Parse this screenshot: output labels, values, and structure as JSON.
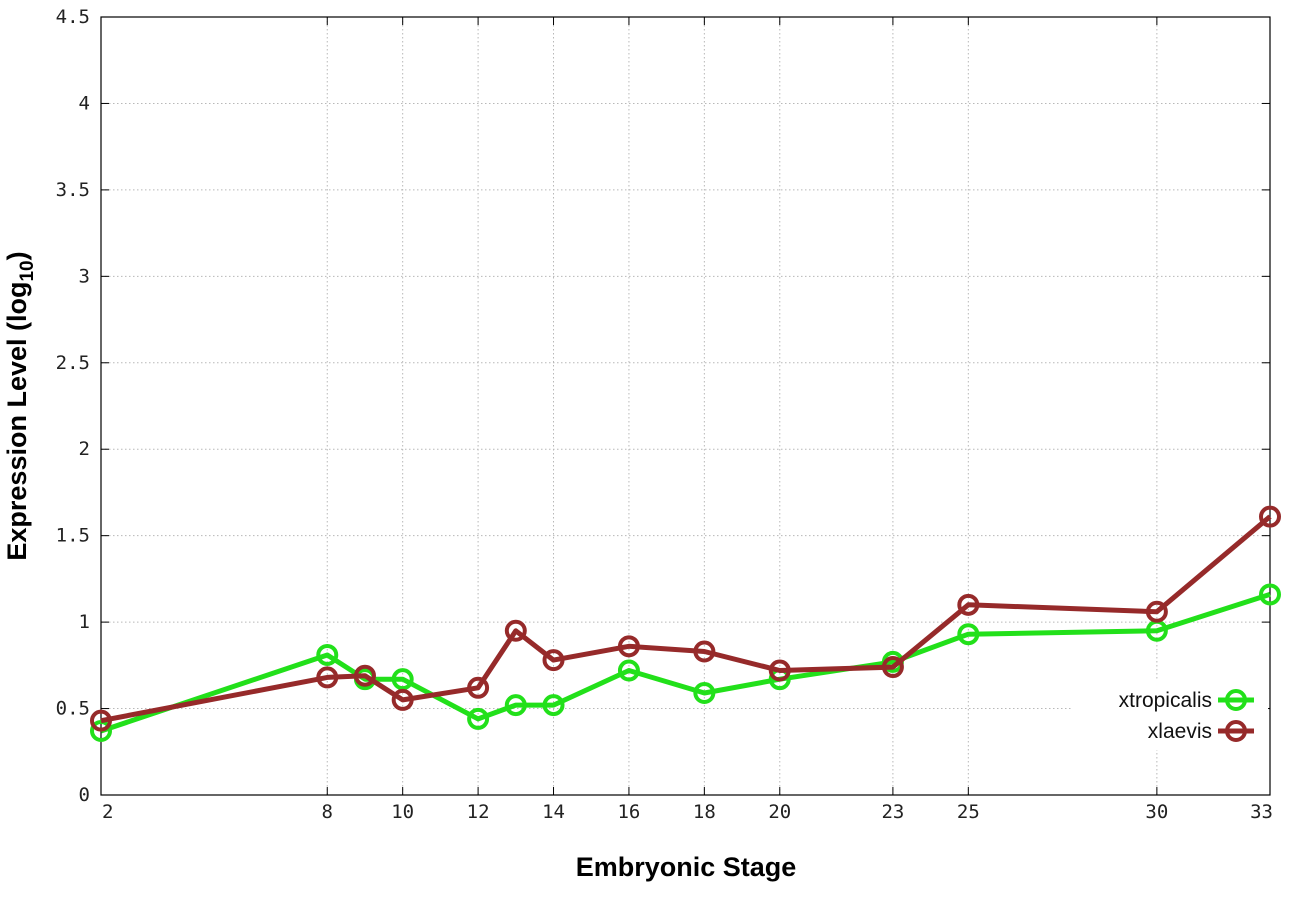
{
  "chart_data": {
    "type": "line",
    "xlabel": "Embryonic Stage",
    "ylabel_main": "Expression Level (log",
    "ylabel_sub": "10",
    "ylabel_close": ")",
    "x": [
      2,
      8,
      9,
      10,
      12,
      13,
      14,
      16,
      18,
      20,
      23,
      25,
      30,
      33
    ],
    "xticks": [
      2,
      8,
      10,
      12,
      14,
      16,
      18,
      20,
      23,
      25,
      30,
      33
    ],
    "yticks": [
      "0",
      "0.5",
      "1",
      "1.5",
      "2",
      "2.5",
      "3",
      "3.5",
      "4",
      "4.5"
    ],
    "ylim": [
      0,
      4.5
    ],
    "grid": true,
    "legend_position": "lower-right",
    "series": [
      {
        "name": "xtropicalis",
        "color": "#22e01a",
        "values": [
          0.37,
          0.81,
          0.67,
          0.67,
          0.44,
          0.52,
          0.52,
          0.72,
          0.59,
          0.67,
          0.77,
          0.93,
          0.95,
          1.16
        ]
      },
      {
        "name": "xlaevis",
        "color": "#962a2a",
        "values": [
          0.43,
          0.68,
          0.69,
          0.55,
          0.62,
          0.95,
          0.78,
          0.86,
          0.83,
          0.72,
          0.74,
          1.1,
          1.06,
          1.61
        ]
      }
    ]
  }
}
